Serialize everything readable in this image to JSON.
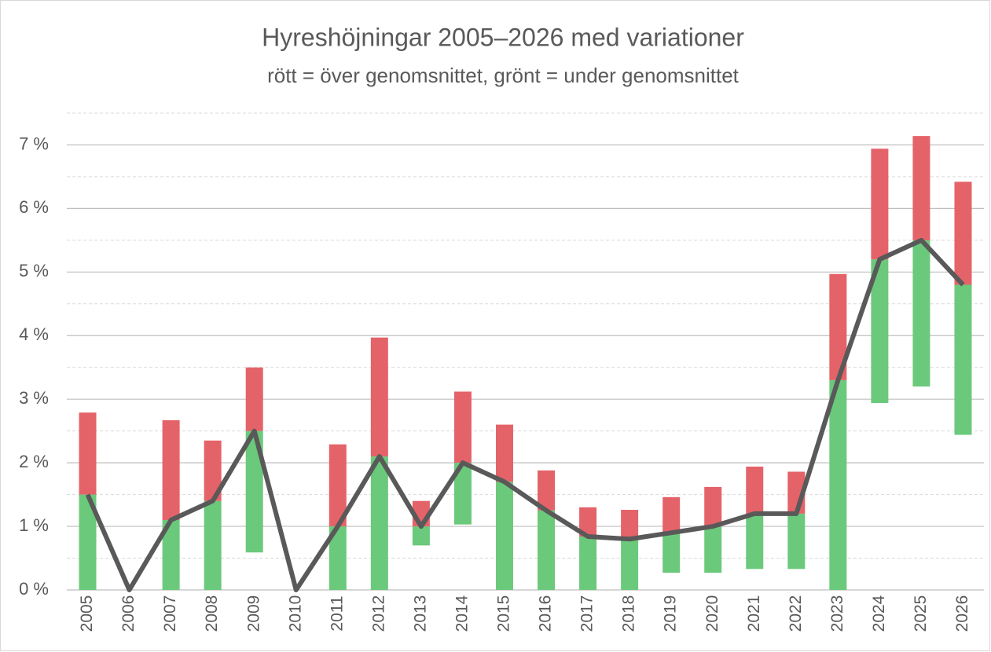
{
  "chart_data": {
    "type": "line",
    "title": "Hyreshöjningar 2005–2026 med variationer",
    "subtitle": "rött = över genomsnittet, grönt = under genomsnittet",
    "categories": [
      "2005",
      "2006",
      "2007",
      "2008",
      "2009",
      "2010",
      "2011",
      "2012",
      "2013",
      "2014",
      "2015",
      "2016",
      "2017",
      "2018",
      "2019",
      "2020",
      "2021",
      "2022",
      "2023",
      "2024",
      "2025",
      "2026"
    ],
    "values": [
      1.5,
      0,
      1.1,
      1.4,
      2.5,
      0,
      1.0,
      2.1,
      1.0,
      2.0,
      1.7,
      1.25,
      0.84,
      0.8,
      0.9,
      1.0,
      1.2,
      1.2,
      3.3,
      5.2,
      5.5,
      4.8
    ],
    "low": [
      0,
      0,
      0,
      0,
      0.59,
      0,
      0,
      0,
      0.7,
      1.03,
      0,
      0,
      0,
      0,
      0.27,
      0.27,
      0.33,
      0.33,
      0,
      2.94,
      3.2,
      2.44
    ],
    "high": [
      2.79,
      0,
      2.67,
      2.35,
      3.5,
      0,
      2.29,
      3.97,
      1.4,
      3.12,
      2.6,
      1.88,
      1.3,
      1.26,
      1.46,
      1.62,
      1.94,
      1.86,
      4.97,
      6.94,
      7.14,
      6.42
    ],
    "line_color": "#595959",
    "below_color": "#6bc97b",
    "above_color": "#e46369",
    "ylim": [
      0,
      7.5
    ],
    "yticks": [
      {
        "value": 0,
        "label": "0 %"
      },
      {
        "value": 1,
        "label": "1 %"
      },
      {
        "value": 2,
        "label": "2 %"
      },
      {
        "value": 3,
        "label": "3 %"
      },
      {
        "value": 4,
        "label": "4 %"
      },
      {
        "value": 5,
        "label": "5 %"
      },
      {
        "value": 6,
        "label": "6 %"
      },
      {
        "value": 7,
        "label": "7 %"
      }
    ],
    "yminor": [
      0.5,
      1.5,
      2.5,
      3.5,
      4.5,
      5.5,
      6.5,
      7.5
    ],
    "grid": true
  }
}
